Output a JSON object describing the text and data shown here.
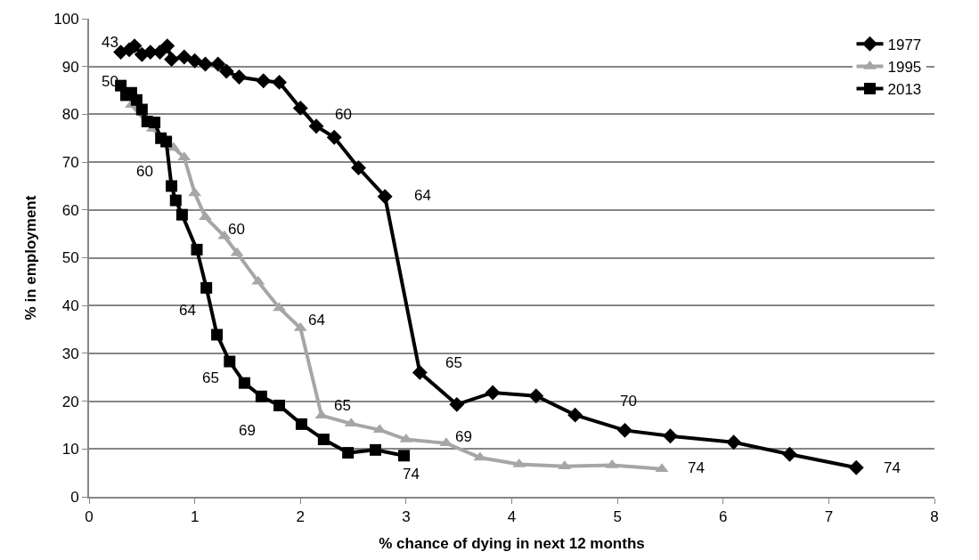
{
  "chart_data": {
    "type": "line",
    "xlabel": "% chance of dying in next 12 months",
    "ylabel": "% in employment",
    "xlim": [
      0,
      8
    ],
    "xticks": [
      0,
      1,
      2,
      3,
      4,
      5,
      6,
      7,
      8
    ],
    "ylim": [
      0,
      100
    ],
    "yticks": [
      0,
      10,
      20,
      30,
      40,
      50,
      60,
      70,
      80,
      90,
      100
    ],
    "grid": "y",
    "legend": "top right",
    "line_style": "solid",
    "series": [
      {
        "name": "1977",
        "color": "#000000",
        "marker": "diamond",
        "x": [
          0.3,
          0.38,
          0.43,
          0.5,
          0.58,
          0.67,
          0.74,
          0.78,
          0.9,
          1.0,
          1.1,
          1.22,
          1.3,
          1.42,
          1.65,
          1.8,
          2.0,
          2.15,
          2.32,
          2.55,
          2.8,
          3.13,
          3.48,
          3.82,
          4.23,
          4.6,
          5.07,
          5.5,
          6.1,
          6.63,
          7.26
        ],
        "values": [
          93,
          93.5,
          94.3,
          92.5,
          93,
          93,
          94.3,
          91.5,
          92,
          91.2,
          90.5,
          90.5,
          89,
          87.8,
          87,
          86.7,
          81.3,
          77.5,
          75.2,
          68.8,
          62.8,
          26,
          19.3,
          21.8,
          21.1,
          17.1,
          13.9,
          12.7,
          11.4,
          8.9,
          6.1
        ]
      },
      {
        "name": "1995",
        "color": "#a6a6a6",
        "marker": "triangle",
        "x": [
          0.4,
          0.6,
          0.7,
          0.8,
          0.9,
          1.0,
          1.1,
          1.28,
          1.4,
          1.6,
          1.8,
          2.0,
          2.2,
          2.48,
          2.75,
          3.0,
          3.38,
          3.7,
          4.07,
          4.5,
          4.95,
          5.42
        ],
        "values": [
          82,
          77,
          75,
          73,
          71,
          63.5,
          58.5,
          54.5,
          51,
          45,
          39.5,
          35.3,
          17,
          15.3,
          14,
          12,
          11.2,
          8.2,
          6.8,
          6.4,
          6.6,
          5.8
        ]
      },
      {
        "name": "2013",
        "color": "#000000",
        "marker": "square",
        "x": [
          0.3,
          0.35,
          0.4,
          0.45,
          0.5,
          0.55,
          0.62,
          0.68,
          0.73,
          0.78,
          0.82,
          0.88,
          1.02,
          1.11,
          1.21,
          1.33,
          1.47,
          1.63,
          1.8,
          2.01,
          2.22,
          2.45,
          2.71,
          2.98
        ],
        "values": [
          86,
          84,
          84.5,
          83,
          81,
          78.5,
          78.3,
          75,
          74.3,
          65,
          62,
          59,
          51.7,
          43.7,
          33.9,
          28.3,
          23.8,
          21,
          19.1,
          15.2,
          12,
          9.2,
          9.8,
          8.6
        ]
      }
    ],
    "annotations": [
      {
        "text": "43",
        "x": 0.3,
        "y": 93
      },
      {
        "text": "60",
        "x": 2.15,
        "y": 77.5
      },
      {
        "text": "64",
        "x": 2.8,
        "y": 62.8
      },
      {
        "text": "65",
        "x": 3.13,
        "y": 26
      },
      {
        "text": "70",
        "x": 5.07,
        "y": 13.9
      },
      {
        "text": "74",
        "x": 7.26,
        "y": 6.1
      },
      {
        "text": "50",
        "x": 0.3,
        "y": 86
      },
      {
        "text": "60",
        "x": 1.28,
        "y": 54.5
      },
      {
        "text": "64",
        "x": 2.0,
        "y": 35.3
      },
      {
        "text": "65",
        "x": 2.2,
        "y": 17
      },
      {
        "text": "69",
        "x": 3.38,
        "y": 11.2
      },
      {
        "text": "74",
        "x": 5.42,
        "y": 5.8
      },
      {
        "text": "60",
        "x": 0.78,
        "y": 65
      },
      {
        "text": "64",
        "x": 1.11,
        "y": 43.7
      },
      {
        "text": "65",
        "x": 1.33,
        "y": 28.3
      },
      {
        "text": "69",
        "x": 1.8,
        "y": 19.1
      },
      {
        "text": "74",
        "x": 2.98,
        "y": 8.6
      }
    ]
  }
}
